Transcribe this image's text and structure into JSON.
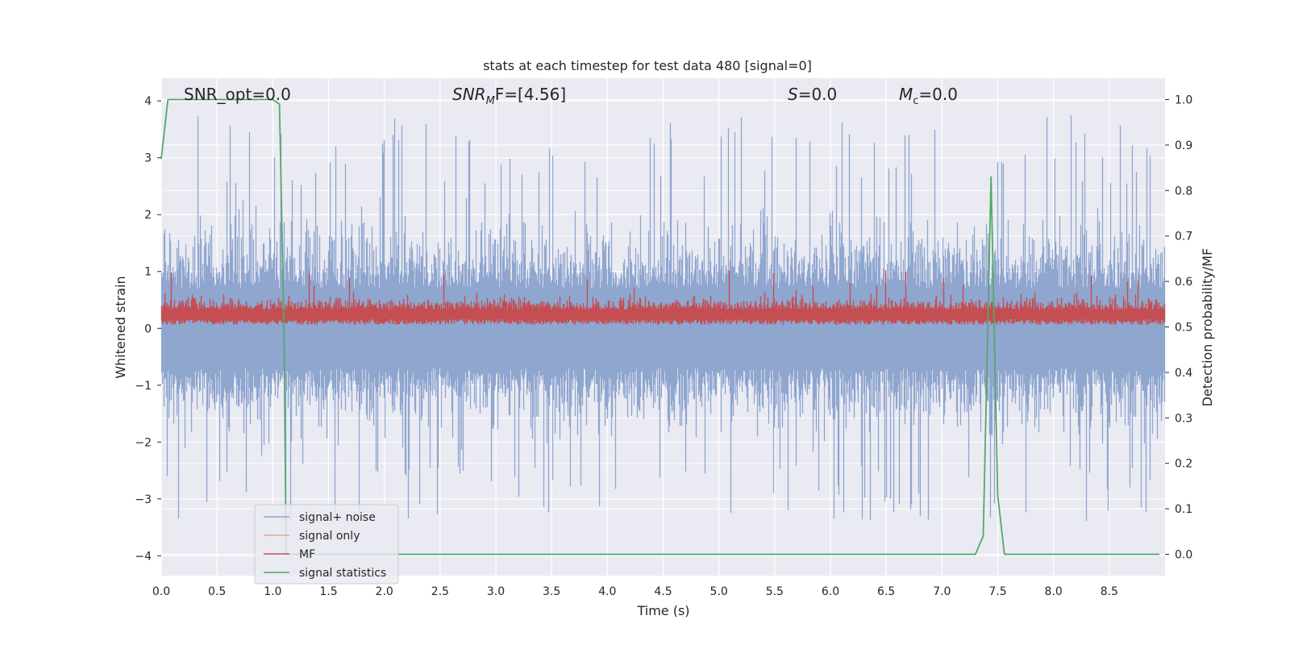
{
  "chart_data": {
    "type": "line",
    "title": "stats at each timestep for test data 480 [signal=0]",
    "xlabel": "Time (s)",
    "ylabel_left": "Whitened strain",
    "ylabel_right": "Detection probability/MF",
    "xlim": [
      0.0,
      9.0
    ],
    "ylim_left": [
      -4.35,
      4.4
    ],
    "ylim_right": [
      -0.047,
      1.047
    ],
    "x_ticks": [
      "0.0",
      "0.5",
      "1.0",
      "1.5",
      "2.0",
      "2.5",
      "3.0",
      "3.5",
      "4.0",
      "4.5",
      "5.0",
      "5.5",
      "6.0",
      "6.5",
      "7.0",
      "7.5",
      "8.0",
      "8.5"
    ],
    "y_left_ticks": [
      "4",
      "3",
      "2",
      "1",
      "0",
      "−1",
      "−2",
      "−3",
      "−4"
    ],
    "y_right_ticks": [
      "1.0",
      "0.9",
      "0.8",
      "0.7",
      "0.6",
      "0.5",
      "0.4",
      "0.3",
      "0.2",
      "0.1",
      "0.0"
    ],
    "annotations": [
      {
        "text": "SNR_opt=0.0",
        "x": 0.2
      },
      {
        "text_base": "SNR",
        "text_sub": "M",
        "text_rest": "F=[4.56]",
        "x": 2.6
      },
      {
        "text_base": "S",
        "text_sub": "",
        "text_rest": "=0.0",
        "x": 5.6
      },
      {
        "text_base": "M",
        "text_sub": "c",
        "text_rest": "=0.0",
        "x": 6.6
      }
    ],
    "grid": true,
    "legend_position": "lower-left",
    "series": [
      {
        "name": "signal+ noise",
        "axis": "left",
        "color": "#8fa6cf",
        "description_envelope": {
          "typical_max": 2.5,
          "typical_min": -2.4,
          "peak_max": 3.75,
          "peak_min": -3.4
        }
      },
      {
        "name": "signal only",
        "axis": "left",
        "color": "#e8a88c",
        "values": []
      },
      {
        "name": "MF",
        "axis": "right",
        "color": "#c44e52",
        "description_envelope": {
          "typical_min": 0.5,
          "typical_max": 0.6,
          "peak_max": 0.625
        }
      },
      {
        "name": "signal statistics",
        "axis": "right",
        "color": "#55a868",
        "x": [
          0.0,
          0.06,
          0.2,
          0.5,
          0.8,
          1.0,
          1.06,
          1.1,
          1.12,
          1.3,
          2.0,
          3.0,
          4.0,
          5.0,
          6.0,
          7.0,
          7.3,
          7.37,
          7.44,
          7.5,
          7.56,
          8.0,
          8.95
        ],
        "values": [
          0.87,
          1.0,
          1.0,
          1.0,
          1.0,
          1.0,
          0.99,
          0.5,
          0.0,
          0.0,
          0.0,
          0.0,
          0.0,
          0.0,
          0.0,
          0.0,
          0.0,
          0.04,
          0.83,
          0.13,
          0.0,
          0.0,
          0.0
        ]
      }
    ]
  }
}
